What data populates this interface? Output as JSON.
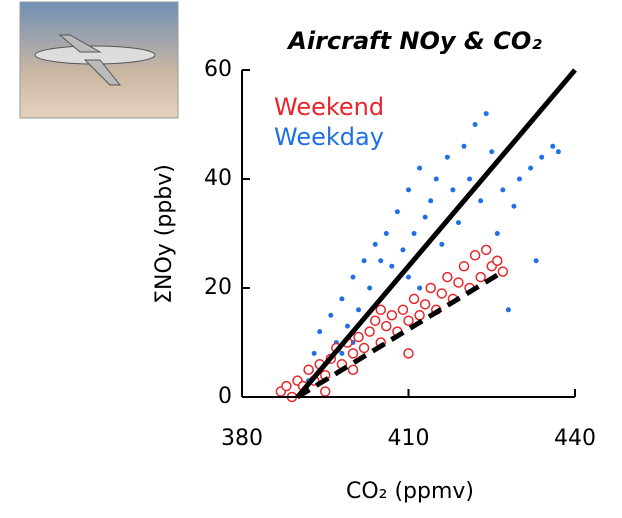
{
  "chart_data": {
    "type": "scatter",
    "title": "Aircraft NOy & CO₂",
    "x_label": "CO₂ (ppmv)",
    "y_label": "ΣNOy (ppbv)",
    "xlim": [
      380,
      440
    ],
    "ylim": [
      0,
      60
    ],
    "xticks": [
      380,
      410,
      440
    ],
    "yticks": [
      0,
      20,
      40,
      60
    ],
    "series": [
      {
        "name": "Weekday",
        "color": "#1f6fe8",
        "x": [
          392,
          393,
          394,
          395,
          396,
          397,
          398,
          399,
          400,
          401,
          402,
          403,
          404,
          405,
          406,
          407,
          408,
          409,
          410,
          411,
          412,
          413,
          414,
          415,
          416,
          417,
          418,
          419,
          420,
          421,
          422,
          423,
          424,
          425,
          426,
          427,
          428,
          430,
          432,
          434,
          436,
          437,
          433,
          429,
          410,
          405,
          415,
          400,
          398,
          412
        ],
        "values": [
          3,
          8,
          12,
          6,
          15,
          10,
          18,
          13,
          22,
          16,
          25,
          20,
          28,
          18,
          30,
          24,
          34,
          27,
          38,
          30,
          42,
          33,
          36,
          40,
          28,
          44,
          38,
          32,
          46,
          40,
          50,
          36,
          52,
          45,
          30,
          38,
          16,
          40,
          42,
          44,
          46,
          45,
          25,
          35,
          22,
          25,
          30,
          10,
          8,
          20
        ]
      },
      {
        "name": "Weekend",
        "color": "#e8262a",
        "x": [
          387,
          388,
          389,
          390,
          391,
          392,
          393,
          394,
          395,
          396,
          397,
          398,
          399,
          400,
          401,
          402,
          403,
          404,
          405,
          406,
          407,
          408,
          409,
          410,
          411,
          412,
          413,
          414,
          415,
          416,
          417,
          418,
          419,
          420,
          421,
          422,
          423,
          424,
          425,
          426,
          427,
          395,
          400,
          405,
          410
        ],
        "values": [
          1,
          2,
          0,
          3,
          2,
          5,
          3,
          6,
          4,
          7,
          9,
          6,
          10,
          8,
          11,
          9,
          12,
          14,
          10,
          13,
          15,
          12,
          16,
          14,
          18,
          15,
          17,
          20,
          16,
          19,
          22,
          18,
          21,
          24,
          20,
          26,
          22,
          27,
          24,
          25,
          23,
          1,
          5,
          16,
          8
        ]
      }
    ],
    "fits": [
      {
        "x": [
          390,
          440
        ],
        "values": [
          0,
          60
        ],
        "dash": false
      },
      {
        "x": [
          390,
          427
        ],
        "values": [
          0,
          23
        ],
        "dash": true
      }
    ]
  }
}
